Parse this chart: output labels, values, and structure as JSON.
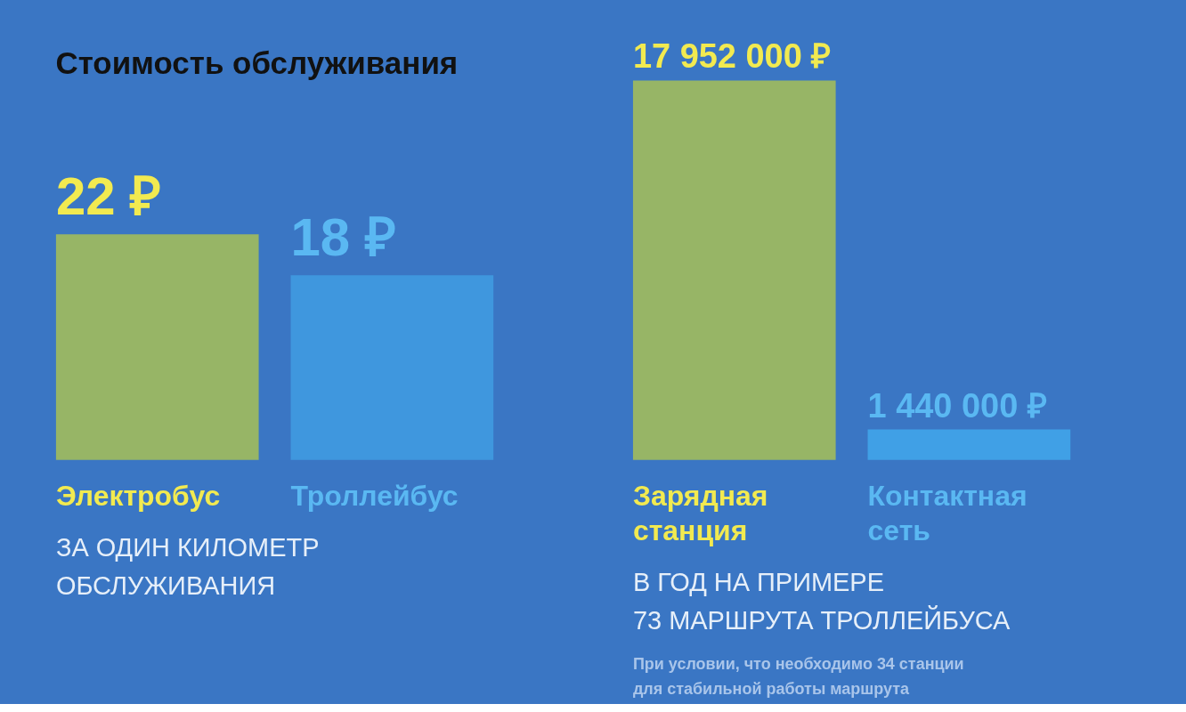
{
  "chart_data": [
    {
      "type": "bar",
      "title": "Стоимость обслуживания",
      "categories": [
        "Электробус",
        "Троллейбус"
      ],
      "values": [
        22,
        18
      ],
      "colors": [
        "#97b566",
        "#3f97de"
      ],
      "value_labels": [
        "22 ₽",
        "18 ₽"
      ],
      "annotations": [
        "ЗА ОДИН КИЛОМЕТР\nОБСЛУЖИВАНИЯ"
      ]
    },
    {
      "type": "bar",
      "categories": [
        "Зарядная станция",
        "Контактная сеть"
      ],
      "values": [
        17952000,
        1440000
      ],
      "colors": [
        "#97b566",
        "#40a0e6"
      ],
      "value_labels": [
        "17 952 000 ₽",
        "1 440 000 ₽"
      ],
      "annotations": [
        "В ГОД НА ПРИМЕРЕ\n73 МАРШРУТА ТРОЛЛЕЙБУСА",
        "При условии, что необходимо 34 станции\nдля стабильной работы маршрута"
      ]
    }
  ]
}
